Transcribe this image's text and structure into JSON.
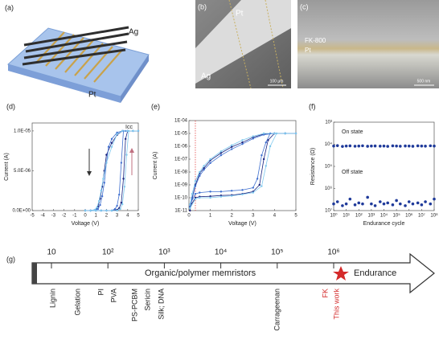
{
  "panels": {
    "a": {
      "label": "(a)",
      "ag": "Ag",
      "pt": "Pt"
    },
    "b": {
      "label": "(b)",
      "pt": "Pt",
      "ag": "Ag",
      "scale": "100 μm"
    },
    "c": {
      "label": "(c)",
      "fk": "FK-800",
      "pt": "Pt",
      "scale": "500 nm"
    }
  },
  "chart_data": [
    {
      "type": "line",
      "panel_label": "(d)",
      "x_label": "Voltage (V)",
      "y_label": "Current (A)",
      "annotation": "Icc",
      "xlim": [
        -5,
        5
      ],
      "xticks": [
        -5,
        -4,
        -3,
        -2,
        -1,
        0,
        1,
        2,
        3,
        4,
        5
      ],
      "ylim": [
        0,
        1.1e-05
      ],
      "yticks": [
        {
          "value": 0,
          "label": "0.0E+00"
        },
        {
          "value": 5e-06,
          "label": "5.0E-06"
        },
        {
          "value": 1e-05,
          "label": "1.0E-05"
        }
      ],
      "series": [
        {
          "color": "#1a237e",
          "x": [
            0,
            0.5,
            1,
            1.5,
            2,
            2.5,
            3,
            3.2,
            3.4,
            3.6,
            3.8,
            4,
            4.5,
            5,
            4.5,
            4,
            3.5,
            3,
            2.5,
            2,
            1.8,
            1.6,
            1.4,
            1.2,
            1,
            0.5,
            0
          ],
          "values": [
            0,
            0,
            0,
            0,
            0,
            0,
            1e-07,
            3e-07,
            1e-06,
            4e-06,
            9e-06,
            1e-05,
            1e-05,
            1e-05,
            1e-05,
            1e-05,
            1e-05,
            9.5e-06,
            8.5e-06,
            7e-06,
            5e-06,
            3e-06,
            1.5e-06,
            5e-07,
            1e-07,
            0,
            0
          ]
        },
        {
          "color": "#3f6fcf",
          "x": [
            0,
            0.5,
            1,
            1.5,
            2,
            2.5,
            2.8,
            3,
            3.2,
            3.4,
            3.6,
            3.8,
            4.5,
            5,
            4.5,
            4,
            3.5,
            3,
            2.5,
            2.2,
            2,
            1.8,
            1.6,
            1.4,
            1.2,
            0.5,
            0
          ],
          "values": [
            0,
            0,
            0,
            0,
            0,
            0,
            2e-07,
            6e-07,
            2e-06,
            6e-06,
            1e-05,
            1e-05,
            1e-05,
            1e-05,
            1e-05,
            1e-05,
            1e-05,
            9.8e-06,
            9e-06,
            8e-06,
            6e-06,
            3.5e-06,
            1.8e-06,
            7e-07,
            2e-07,
            0,
            0
          ]
        },
        {
          "color": "#7ec8ee",
          "x": [
            0,
            0.5,
            1,
            1.5,
            2,
            2.5,
            3,
            3.3,
            3.5,
            3.7,
            3.9,
            4.1,
            4.5,
            5,
            4.5,
            4,
            3.5,
            3,
            2.5,
            2,
            1.7,
            1.5,
            1.3,
            1.1,
            0.9,
            0.5,
            0
          ],
          "values": [
            0,
            0,
            0,
            0,
            0,
            0,
            0,
            2e-07,
            8e-07,
            3e-06,
            7e-06,
            1e-05,
            1e-05,
            1e-05,
            1e-05,
            1e-05,
            1e-05,
            9.6e-06,
            8e-06,
            6e-06,
            4e-06,
            2.5e-06,
            1.2e-06,
            4e-07,
            1e-07,
            0,
            0
          ]
        }
      ]
    },
    {
      "type": "line",
      "panel_label": "(e)",
      "x_label": "Voltage (V)",
      "y_label": "Current (A)",
      "log_y": true,
      "reference_x": 0.3,
      "xlim": [
        0,
        5
      ],
      "xticks": [
        0,
        1,
        2,
        3,
        4,
        5
      ],
      "ylim": [
        1e-11,
        0.0001
      ],
      "yticks": [
        {
          "value": 1e-11,
          "label": "1E-11"
        },
        {
          "value": 1e-10,
          "label": "1E-10"
        },
        {
          "value": 1e-09,
          "label": "1E-09"
        },
        {
          "value": 1e-08,
          "label": "1E-08"
        },
        {
          "value": 1e-07,
          "label": "1E-07"
        },
        {
          "value": 1e-06,
          "label": "1E-06"
        },
        {
          "value": 1e-05,
          "label": "1E-05"
        },
        {
          "value": 0.0001,
          "label": "1E-04"
        }
      ],
      "series": [
        {
          "color": "#1a237e",
          "x": [
            0.05,
            0.3,
            0.5,
            1,
            1.5,
            2,
            2.5,
            3,
            3.3,
            3.5,
            3.7,
            4,
            4.5,
            5,
            4.5,
            4,
            3.5,
            3,
            2.5,
            2,
            1.5,
            1,
            0.7,
            0.5,
            0.3,
            0.15,
            0.05
          ],
          "values": [
            2e-11,
            1e-10,
            1.2e-10,
            1.3e-10,
            1.5e-10,
            1.6e-10,
            2e-10,
            3e-10,
            1e-09,
            1e-07,
            3e-06,
            1e-05,
            1e-05,
            1e-05,
            1e-05,
            1e-05,
            9e-06,
            5e-06,
            2e-06,
            9e-07,
            3e-07,
            8e-08,
            2e-08,
            8e-09,
            1e-09,
            1e-10,
            1e-11
          ]
        },
        {
          "color": "#3f6fcf",
          "x": [
            0.05,
            0.3,
            0.5,
            1,
            1.5,
            2,
            2.5,
            3,
            3.2,
            3.4,
            3.6,
            3.8,
            4.5,
            5,
            4.5,
            4,
            3.5,
            3,
            2.5,
            2,
            1.5,
            1,
            0.7,
            0.5,
            0.3,
            0.15,
            0.05
          ],
          "values": [
            3e-11,
            2e-10,
            2.5e-10,
            3e-10,
            3e-10,
            3.5e-10,
            4e-10,
            6e-10,
            3e-09,
            2e-07,
            2e-06,
            1e-05,
            1e-05,
            1e-05,
            1e-05,
            1e-05,
            8e-06,
            4e-06,
            1.5e-06,
            6e-07,
            2e-07,
            5e-08,
            1.5e-08,
            5e-09,
            8e-10,
            8e-11,
            2e-11
          ]
        },
        {
          "color": "#7ec8ee",
          "x": [
            0.05,
            0.3,
            0.5,
            1,
            1.5,
            2,
            2.5,
            3,
            3.4,
            3.6,
            3.8,
            4.1,
            4.5,
            5,
            4.5,
            4,
            3.5,
            3,
            2.5,
            2,
            1.5,
            1,
            0.7,
            0.5,
            0.3,
            0.15,
            0.05
          ],
          "values": [
            1.5e-11,
            8e-11,
            1e-10,
            1e-10,
            1.2e-10,
            1.4e-10,
            1.8e-10,
            2.5e-10,
            8e-10,
            3e-08,
            1e-06,
            1e-05,
            1e-05,
            1e-05,
            1e-05,
            1e-05,
            1e-05,
            6e-06,
            3e-06,
            1.2e-06,
            4e-07,
            1e-07,
            3e-08,
            1e-08,
            2e-09,
            2e-10,
            3e-11
          ]
        }
      ]
    },
    {
      "type": "scatter",
      "panel_label": "(f)",
      "x_label": "Endurance cycle",
      "y_label": "Resistance (Ω)",
      "log_x": true,
      "log_y": true,
      "y_inverted": true,
      "annotations": [
        "On state",
        "Off state"
      ],
      "xlim": [
        1,
        100000000.0
      ],
      "xticks": [
        {
          "value": 1,
          "label": "10⁰"
        },
        {
          "value": 10,
          "label": "10¹"
        },
        {
          "value": 100,
          "label": "10²"
        },
        {
          "value": 1000,
          "label": "10³"
        },
        {
          "value": 10000.0,
          "label": "10⁴"
        },
        {
          "value": 100000.0,
          "label": "10⁵"
        },
        {
          "value": 1000000.0,
          "label": "10⁶"
        },
        {
          "value": 10000000.0,
          "label": "10⁷"
        },
        {
          "value": 100000000.0,
          "label": "10⁸"
        }
      ],
      "ylim": [
        1000,
        10000000.0
      ],
      "yticks": [
        {
          "value": 1000,
          "label": "10³"
        },
        {
          "value": 10000.0,
          "label": "10⁴"
        },
        {
          "value": 100000.0,
          "label": "10⁵"
        },
        {
          "value": 1000000.0,
          "label": "10⁶"
        },
        {
          "value": 10000000.0,
          "label": "10⁷"
        }
      ],
      "x": [
        1,
        2,
        5,
        10,
        20,
        50,
        100,
        200,
        500,
        1000,
        2000,
        5000,
        10000.0,
        20000.0,
        50000.0,
        100000.0,
        200000.0,
        500000.0,
        1000000.0,
        2000000.0,
        5000000.0,
        10000000.0,
        20000000.0,
        50000000.0,
        100000000.0
      ],
      "series": [
        {
          "color": "#1f3a9a",
          "values": [
            12000,
            11500,
            12500,
            12000,
            11800,
            12200,
            12000,
            11700,
            12300,
            12000,
            11900,
            12100,
            12000,
            12400,
            11800,
            12000,
            12200,
            11900,
            12000,
            12300,
            11800,
            12000,
            12100,
            11700,
            12000
          ]
        },
        {
          "color": "#1f3a9a",
          "values": [
            5000000,
            4000000,
            6000000,
            5000000,
            3000000,
            5500000,
            4500000,
            5000000,
            2500000,
            5000000,
            6000000,
            4000000,
            5000000,
            4500000,
            5500000,
            3500000,
            5000000,
            6000000,
            4000000,
            5000000,
            4500000,
            5500000,
            4000000,
            5000000,
            3000000
          ]
        }
      ]
    }
  ],
  "timeline": {
    "label": "(g)",
    "title": "Organic/polymer memristors",
    "end": "Endurance",
    "ticks": [
      10,
      {
        "value": 100,
        "label": "10²"
      },
      {
        "value": 1000,
        "label": "10³"
      },
      {
        "value": 10000,
        "label": "10⁴"
      },
      {
        "value": 100000,
        "label": "10⁵"
      },
      {
        "value": 1000000,
        "label": "10⁶"
      }
    ],
    "materials": [
      "Lignin",
      "Gelation",
      "PI",
      "PVA",
      "PS-PCBM",
      "Sericin",
      "Silk; DNA",
      "Carrageenan"
    ],
    "highlight": [
      "FK",
      "This work"
    ]
  }
}
